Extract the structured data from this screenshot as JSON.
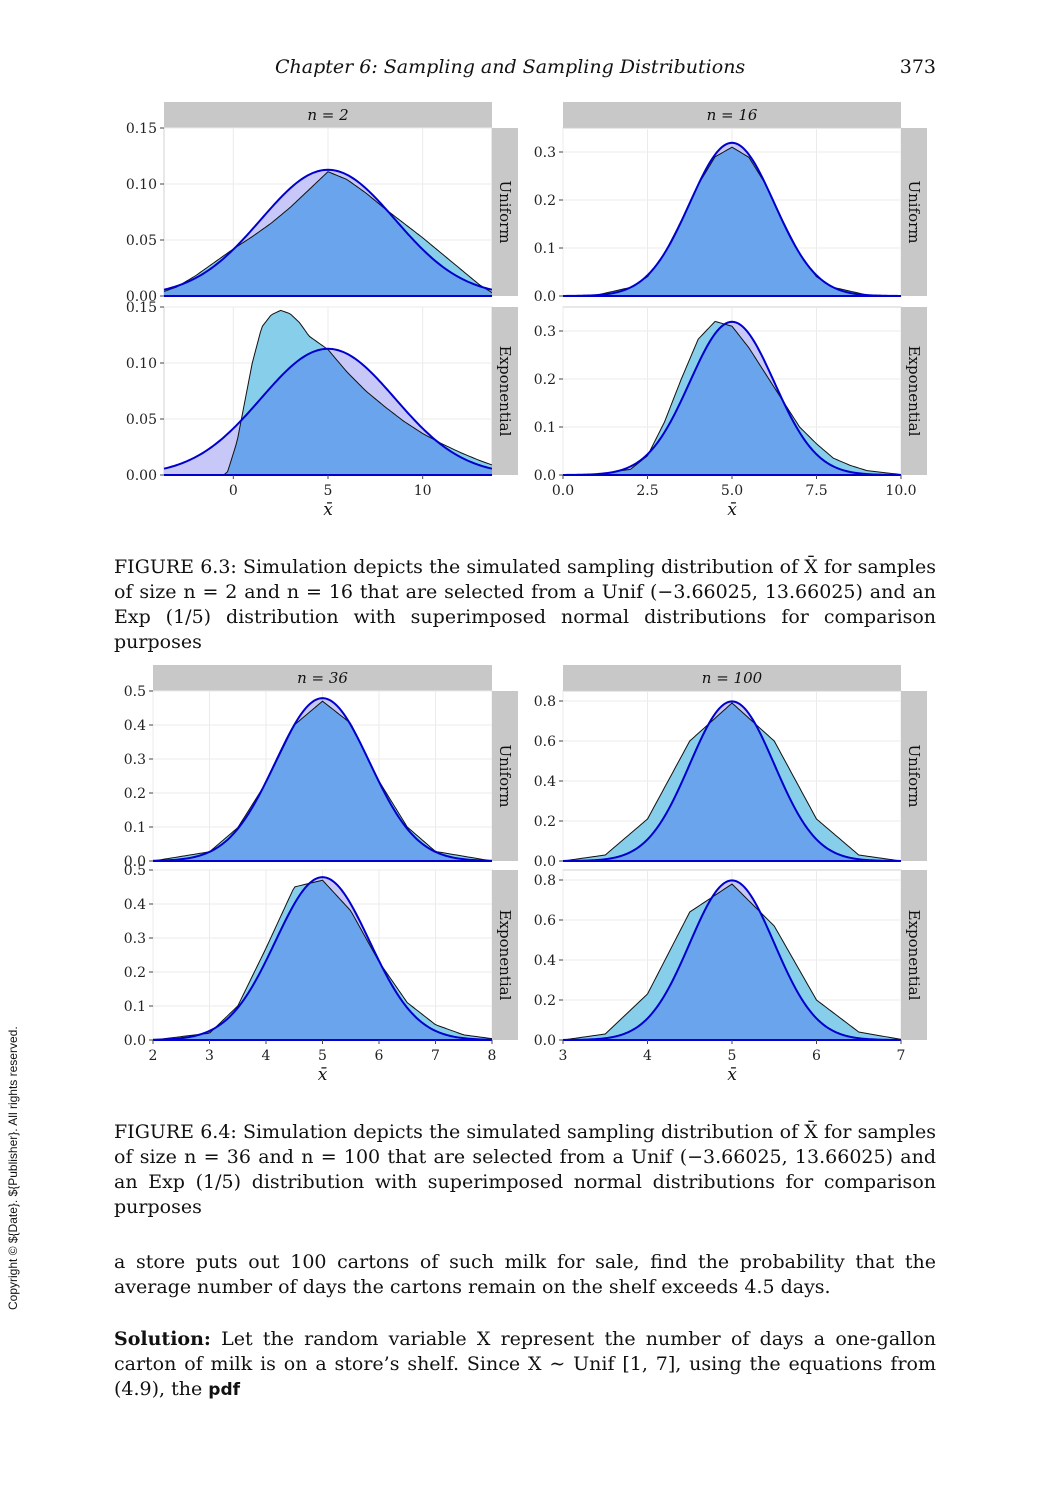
{
  "header": {
    "running_title": "Chapter  6:   Sampling and Sampling Distributions",
    "page_number": "373"
  },
  "figure_6_3": {
    "caption": "FIGURE 6.3: Simulation depicts the simulated sampling distribution of X̄ for samples of size n = 2 and n = 16 that are selected from a Unif (−3.66025, 13.66025) and an Exp (1/5) distribution with superimposed normal distributions for comparison purposes"
  },
  "figure_6_4": {
    "caption": "FIGURE 6.4: Simulation depicts the simulated sampling distribution of X̄ for samples of size n = 36 and n = 100 that are selected from a Unif (−3.66025, 13.66025) and an Exp (1/5) distribution with superimposed normal distributions for comparison purposes"
  },
  "body": {
    "paragraph": "a store puts out 100 cartons of such milk for sale, find the probability that the average number of days the cartons remain on the shelf exceeds 4.5 days.",
    "solution_label": "Solution:",
    "solution_text": " Let the random variable X represent the number of days a one-gallon carton of milk is on a store’s shelf. Since X ∼ Unif [1, 7], using the equations from (4.9), the ",
    "solution_pdf": "pdf"
  },
  "side_copyright": "Copyright © ${Date}. ${Publisher}. All rights reserved.",
  "colors": {
    "panel_bg": "#ffffff",
    "grid": "#ebebeb",
    "strip": "#c8c8c8",
    "uniform_fill": "#87ceeb",
    "normal_fill": "#c8c8f8",
    "overlap_fill": "#6aa4ec",
    "normal_line": "#0000cd",
    "density_line": "#111111"
  },
  "chart_data": [
    {
      "type": "area",
      "figure": "6.3",
      "column_headers": [
        "n = 2",
        "n = 16"
      ],
      "row_labels": [
        "Uniform",
        "Exponential"
      ],
      "xlabel": "x̄",
      "panels": [
        {
          "n": 2,
          "distribution": "Uniform",
          "xlim": [
            -3.66,
            13.66
          ],
          "ylim": [
            0,
            0.15
          ],
          "x_ticks": [
            0,
            5,
            10
          ],
          "y_ticks": [
            0,
            0.05,
            0.1,
            0.15
          ],
          "x_tick_labels": [
            "0",
            "5",
            "10"
          ],
          "y_tick_labels": [
            "0.00",
            "0.05",
            "0.10",
            "0.15"
          ],
          "normal": {
            "mean": 5,
            "sd": 3.54
          },
          "density": {
            "x": [
              -3.66,
              -3,
              -2,
              -1,
              0,
              1,
              2,
              3,
              4,
              5,
              6,
              7,
              8,
              9,
              10,
              11,
              12,
              13,
              13.66
            ],
            "y": [
              0.004,
              0.008,
              0.018,
              0.03,
              0.042,
              0.053,
              0.065,
              0.079,
              0.095,
              0.111,
              0.104,
              0.092,
              0.078,
              0.065,
              0.052,
              0.038,
              0.024,
              0.01,
              0.003
            ]
          }
        },
        {
          "n": 2,
          "distribution": "Exponential",
          "xlim": [
            -3.66,
            13.66
          ],
          "ylim": [
            0,
            0.15
          ],
          "x_ticks": [
            0,
            5,
            10
          ],
          "y_ticks": [
            0,
            0.05,
            0.1,
            0.15
          ],
          "x_tick_labels": [
            "0",
            "5",
            "10"
          ],
          "y_tick_labels": [
            "0.00",
            "0.05",
            "0.10",
            "0.15"
          ],
          "normal": {
            "mean": 5,
            "sd": 3.54
          },
          "density": {
            "x": [
              -3.66,
              -0.5,
              -0.3,
              0.2,
              0.6,
              1,
              1.5,
              2,
              2.5,
              3,
              3.5,
              4,
              5,
              6,
              7,
              8,
              9,
              10,
              11,
              12,
              13,
              13.66
            ],
            "y": [
              0,
              0,
              0.003,
              0.03,
              0.065,
              0.1,
              0.132,
              0.143,
              0.147,
              0.144,
              0.136,
              0.124,
              0.112,
              0.092,
              0.075,
              0.061,
              0.048,
              0.037,
              0.028,
              0.02,
              0.013,
              0.009
            ]
          }
        },
        {
          "n": 16,
          "distribution": "Uniform",
          "xlim": [
            0,
            10
          ],
          "ylim": [
            0,
            0.35
          ],
          "x_ticks": [
            0,
            2.5,
            5,
            7.5,
            10
          ],
          "y_ticks": [
            0,
            0.1,
            0.2,
            0.3
          ],
          "x_tick_labels": [
            "0.0",
            "2.5",
            "5.0",
            "7.5",
            "10.0"
          ],
          "y_tick_labels": [
            "0.0",
            "0.1",
            "0.2",
            "0.3"
          ],
          "normal": {
            "mean": 5,
            "sd": 1.25
          },
          "density": {
            "x": [
              0,
              1,
              2,
              2.5,
              3,
              3.5,
              4,
              4.5,
              5,
              5.5,
              6,
              6.5,
              7,
              7.5,
              8,
              9,
              10
            ],
            "y": [
              0,
              0.002,
              0.018,
              0.04,
              0.088,
              0.157,
              0.232,
              0.29,
              0.31,
              0.289,
              0.232,
              0.157,
              0.088,
              0.04,
              0.018,
              0.002,
              0
            ]
          }
        },
        {
          "n": 16,
          "distribution": "Exponential",
          "xlim": [
            0,
            10
          ],
          "ylim": [
            0,
            0.35
          ],
          "x_ticks": [
            0,
            2.5,
            5,
            7.5,
            10
          ],
          "y_ticks": [
            0,
            0.1,
            0.2,
            0.3
          ],
          "x_tick_labels": [
            "0.0",
            "2.5",
            "5.0",
            "7.5",
            "10.0"
          ],
          "y_tick_labels": [
            "0.0",
            "0.1",
            "0.2",
            "0.3"
          ],
          "normal": {
            "mean": 5,
            "sd": 1.25
          },
          "density": {
            "x": [
              0,
              1,
              2,
              2.5,
              3,
              3.5,
              4,
              4.5,
              5,
              5.5,
              6,
              6.5,
              7,
              7.5,
              8,
              8.5,
              9,
              10
            ],
            "y": [
              0,
              0.001,
              0.012,
              0.04,
              0.11,
              0.2,
              0.283,
              0.32,
              0.31,
              0.265,
              0.21,
              0.155,
              0.1,
              0.065,
              0.035,
              0.02,
              0.009,
              0.001
            ]
          }
        }
      ]
    },
    {
      "type": "area",
      "figure": "6.4",
      "column_headers": [
        "n = 36",
        "n = 100"
      ],
      "row_labels": [
        "Uniform",
        "Exponential"
      ],
      "xlabel": "x̄",
      "panels": [
        {
          "n": 36,
          "distribution": "Uniform",
          "xlim": [
            2,
            8
          ],
          "ylim": [
            0,
            0.5
          ],
          "x_ticks": [
            2,
            3,
            4,
            5,
            6,
            7,
            8
          ],
          "y_ticks": [
            0,
            0.1,
            0.2,
            0.3,
            0.4,
            0.5
          ],
          "x_tick_labels": [
            "2",
            "3",
            "4",
            "5",
            "6",
            "7",
            "8"
          ],
          "y_tick_labels": [
            "0.0",
            "0.1",
            "0.2",
            "0.3",
            "0.4",
            "0.5"
          ],
          "normal": {
            "mean": 5,
            "sd": 0.833
          },
          "density": {
            "x": [
              2,
              3,
              3.5,
              4,
              4.5,
              5,
              5.5,
              6,
              6.5,
              7,
              8
            ],
            "y": [
              0,
              0.027,
              0.098,
              0.23,
              0.4,
              0.47,
              0.405,
              0.235,
              0.1,
              0.028,
              0
            ]
          }
        },
        {
          "n": 36,
          "distribution": "Exponential",
          "xlim": [
            2,
            8
          ],
          "ylim": [
            0,
            0.5
          ],
          "x_ticks": [
            2,
            3,
            4,
            5,
            6,
            7,
            8
          ],
          "y_ticks": [
            0,
            0.1,
            0.2,
            0.3,
            0.4,
            0.5
          ],
          "x_tick_labels": [
            "2",
            "3",
            "4",
            "5",
            "6",
            "7",
            "8"
          ],
          "y_tick_labels": [
            "0.0",
            "0.1",
            "0.2",
            "0.3",
            "0.4",
            "0.5"
          ],
          "normal": {
            "mean": 5,
            "sd": 0.833
          },
          "density": {
            "x": [
              2,
              3,
              3.5,
              4,
              4.5,
              5,
              5.5,
              6,
              6.5,
              7,
              7.5,
              8
            ],
            "y": [
              0,
              0.02,
              0.1,
              0.27,
              0.45,
              0.47,
              0.38,
              0.23,
              0.11,
              0.045,
              0.015,
              0.004
            ]
          }
        },
        {
          "n": 100,
          "distribution": "Uniform",
          "xlim": [
            3,
            7
          ],
          "ylim": [
            0,
            0.85
          ],
          "x_ticks": [
            3,
            4,
            5,
            6,
            7
          ],
          "y_ticks": [
            0,
            0.2,
            0.4,
            0.6,
            0.8
          ],
          "x_tick_labels": [
            "3",
            "4",
            "5",
            "6",
            "7"
          ],
          "y_tick_labels": [
            "0.0",
            "0.2",
            "0.4",
            "0.6",
            "0.8"
          ],
          "normal": {
            "mean": 5,
            "sd": 0.5
          },
          "density": {
            "x": [
              3,
              3.5,
              4,
              4.5,
              5,
              5.5,
              6,
              6.5,
              7
            ],
            "y": [
              0,
              0.03,
              0.21,
              0.6,
              0.79,
              0.6,
              0.21,
              0.03,
              0
            ]
          }
        },
        {
          "n": 100,
          "distribution": "Exponential",
          "xlim": [
            3,
            7
          ],
          "ylim": [
            0,
            0.85
          ],
          "x_ticks": [
            3,
            4,
            5,
            6,
            7
          ],
          "y_ticks": [
            0,
            0.2,
            0.4,
            0.6,
            0.8
          ],
          "x_tick_labels": [
            "3",
            "4",
            "5",
            "6",
            "7"
          ],
          "y_tick_labels": [
            "0.0",
            "0.2",
            "0.4",
            "0.6",
            "0.8"
          ],
          "normal": {
            "mean": 5,
            "sd": 0.5
          },
          "density": {
            "x": [
              3,
              3.5,
              4,
              4.5,
              5,
              5.5,
              6,
              6.5,
              7
            ],
            "y": [
              0,
              0.03,
              0.23,
              0.64,
              0.78,
              0.57,
              0.2,
              0.04,
              0.003
            ]
          }
        }
      ]
    }
  ]
}
